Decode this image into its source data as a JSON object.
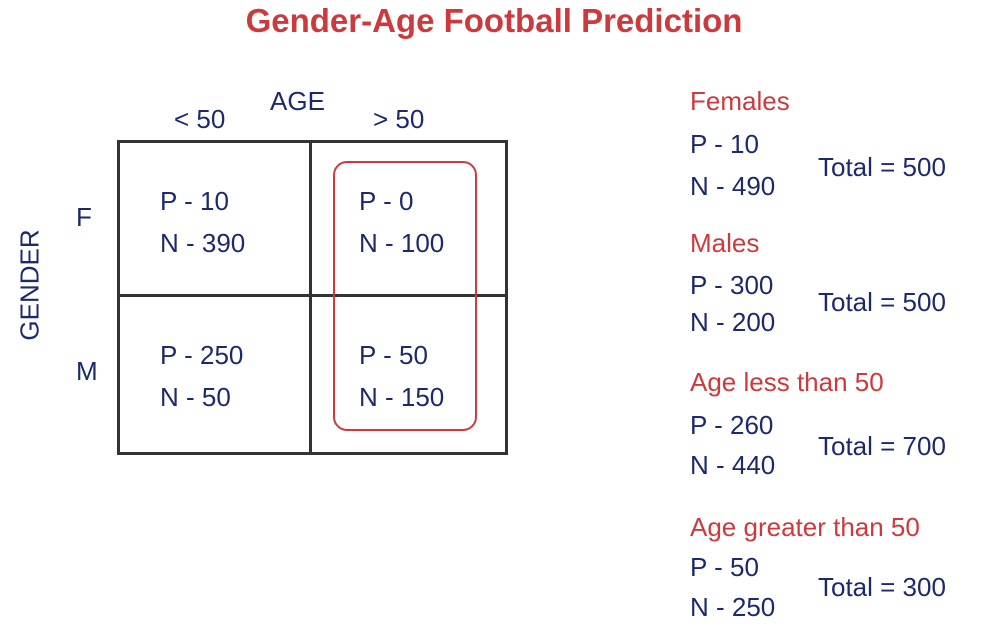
{
  "title": "Gender-Age Football Prediction",
  "axes": {
    "column_axis_label": "AGE",
    "row_axis_label": "GENDER",
    "columns": [
      "< 50",
      "> 50"
    ],
    "rows": [
      "F",
      "M"
    ]
  },
  "cells": {
    "f_lt50": {
      "p": "P - 10",
      "n": "N - 390"
    },
    "f_gt50": {
      "p": "P - 0",
      "n": "N - 100"
    },
    "m_lt50": {
      "p": "P - 250",
      "n": "N - 50"
    },
    "m_gt50": {
      "p": "P - 50",
      "n": "N - 150"
    }
  },
  "highlight": {
    "column": "> 50",
    "color": "#cc3a3e"
  },
  "summaries": [
    {
      "title": "Females",
      "p": "P - 10",
      "n": "N - 490",
      "total": "Total = 500"
    },
    {
      "title": "Males",
      "p": "P - 300",
      "n": "N - 200",
      "total": "Total = 500"
    },
    {
      "title": "Age less than 50",
      "p": "P - 260",
      "n": "N - 440",
      "total": "Total = 700"
    },
    {
      "title": "Age greater than 50",
      "p": "P - 50",
      "n": "N - 250",
      "total": "Total = 300"
    }
  ],
  "colors": {
    "title_red": "#cc3a3e",
    "text_navy": "#1c2a6b",
    "grid_line": "#333333"
  }
}
